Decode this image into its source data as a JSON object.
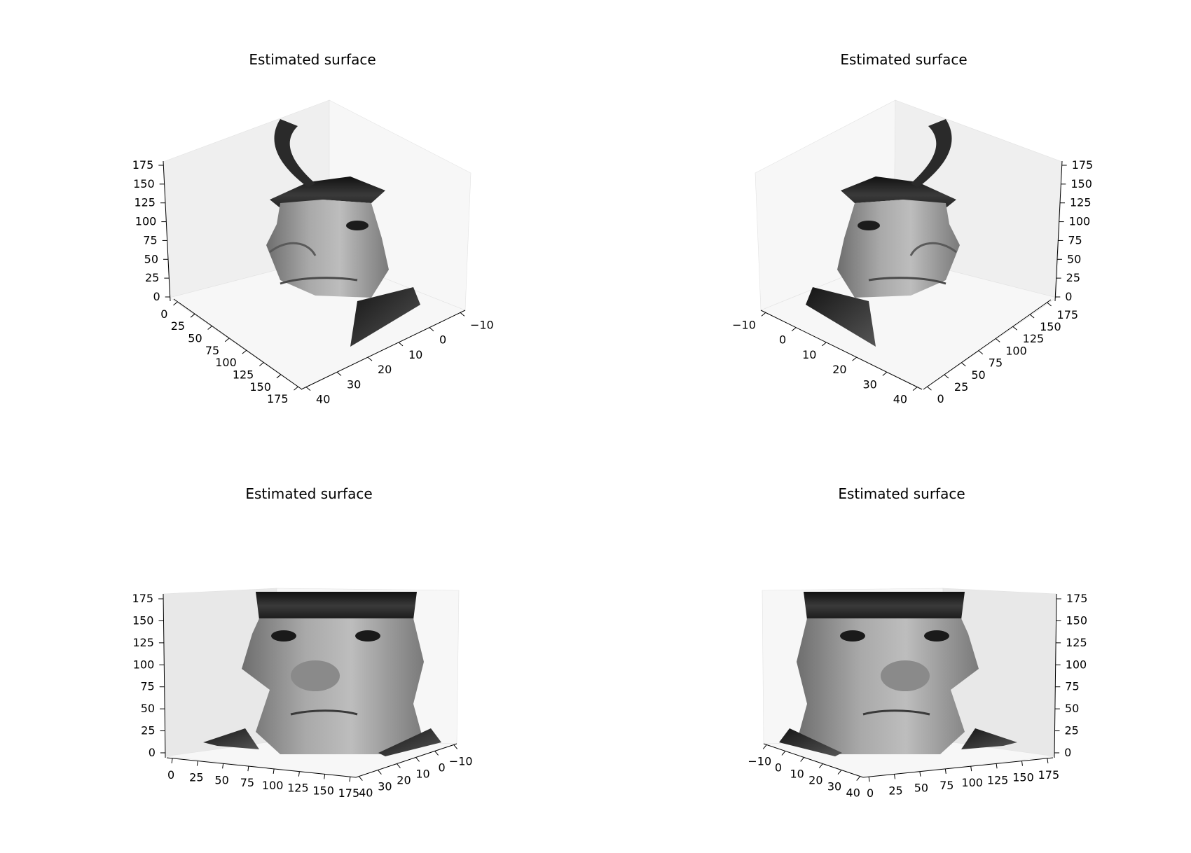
{
  "chart_data": [
    {
      "type": "surface3d",
      "title": "Estimated surface",
      "view": "upper-left oblique",
      "colormap": "grayscale",
      "x_ticks": [
        "0",
        "25",
        "50",
        "75",
        "100",
        "125",
        "150",
        "175"
      ],
      "y_ticks": [
        "−10",
        "0",
        "10",
        "20",
        "30",
        "40"
      ],
      "z_ticks": [
        "0",
        "25",
        "50",
        "75",
        "100",
        "125",
        "150",
        "175"
      ],
      "xlim": [
        0,
        175
      ],
      "ylim": [
        -10,
        40
      ],
      "zlim": [
        0,
        190
      ],
      "grid": false
    },
    {
      "type": "surface3d",
      "title": "Estimated surface",
      "view": "upper-right oblique",
      "colormap": "grayscale",
      "x_ticks": [
        "0",
        "25",
        "50",
        "75",
        "100",
        "125",
        "150",
        "175"
      ],
      "y_ticks": [
        "−10",
        "0",
        "10",
        "20",
        "30",
        "40"
      ],
      "z_ticks": [
        "0",
        "25",
        "50",
        "75",
        "100",
        "125",
        "150",
        "175"
      ],
      "xlim": [
        0,
        175
      ],
      "ylim": [
        -10,
        40
      ],
      "zlim": [
        0,
        190
      ],
      "grid": false
    },
    {
      "type": "surface3d",
      "title": "Estimated surface",
      "view": "low-left frontal",
      "colormap": "grayscale",
      "x_ticks": [
        "0",
        "25",
        "50",
        "75",
        "100",
        "125",
        "150",
        "175"
      ],
      "y_ticks": [
        "−10",
        "0",
        "10",
        "20",
        "30",
        "40"
      ],
      "z_ticks": [
        "0",
        "25",
        "50",
        "75",
        "100",
        "125",
        "150",
        "175"
      ],
      "xlim": [
        0,
        175
      ],
      "ylim": [
        -10,
        40
      ],
      "zlim": [
        0,
        190
      ],
      "grid": false
    },
    {
      "type": "surface3d",
      "title": "Estimated surface",
      "view": "low-right frontal",
      "colormap": "grayscale",
      "x_ticks": [
        "0",
        "25",
        "50",
        "75",
        "100",
        "125",
        "150",
        "175"
      ],
      "y_ticks": [
        "−10",
        "0",
        "10",
        "20",
        "30",
        "40"
      ],
      "z_ticks": [
        "0",
        "25",
        "50",
        "75",
        "100",
        "125",
        "150",
        "175"
      ],
      "xlim": [
        0,
        175
      ],
      "ylim": [
        -10,
        40
      ],
      "zlim": [
        0,
        190
      ],
      "grid": false
    }
  ],
  "colors": {
    "pane_light": "#f7f7f7",
    "pane_mid": "#efefef",
    "pane_dark": "#e8e8e8",
    "axis": "#000000",
    "text": "#000000"
  }
}
